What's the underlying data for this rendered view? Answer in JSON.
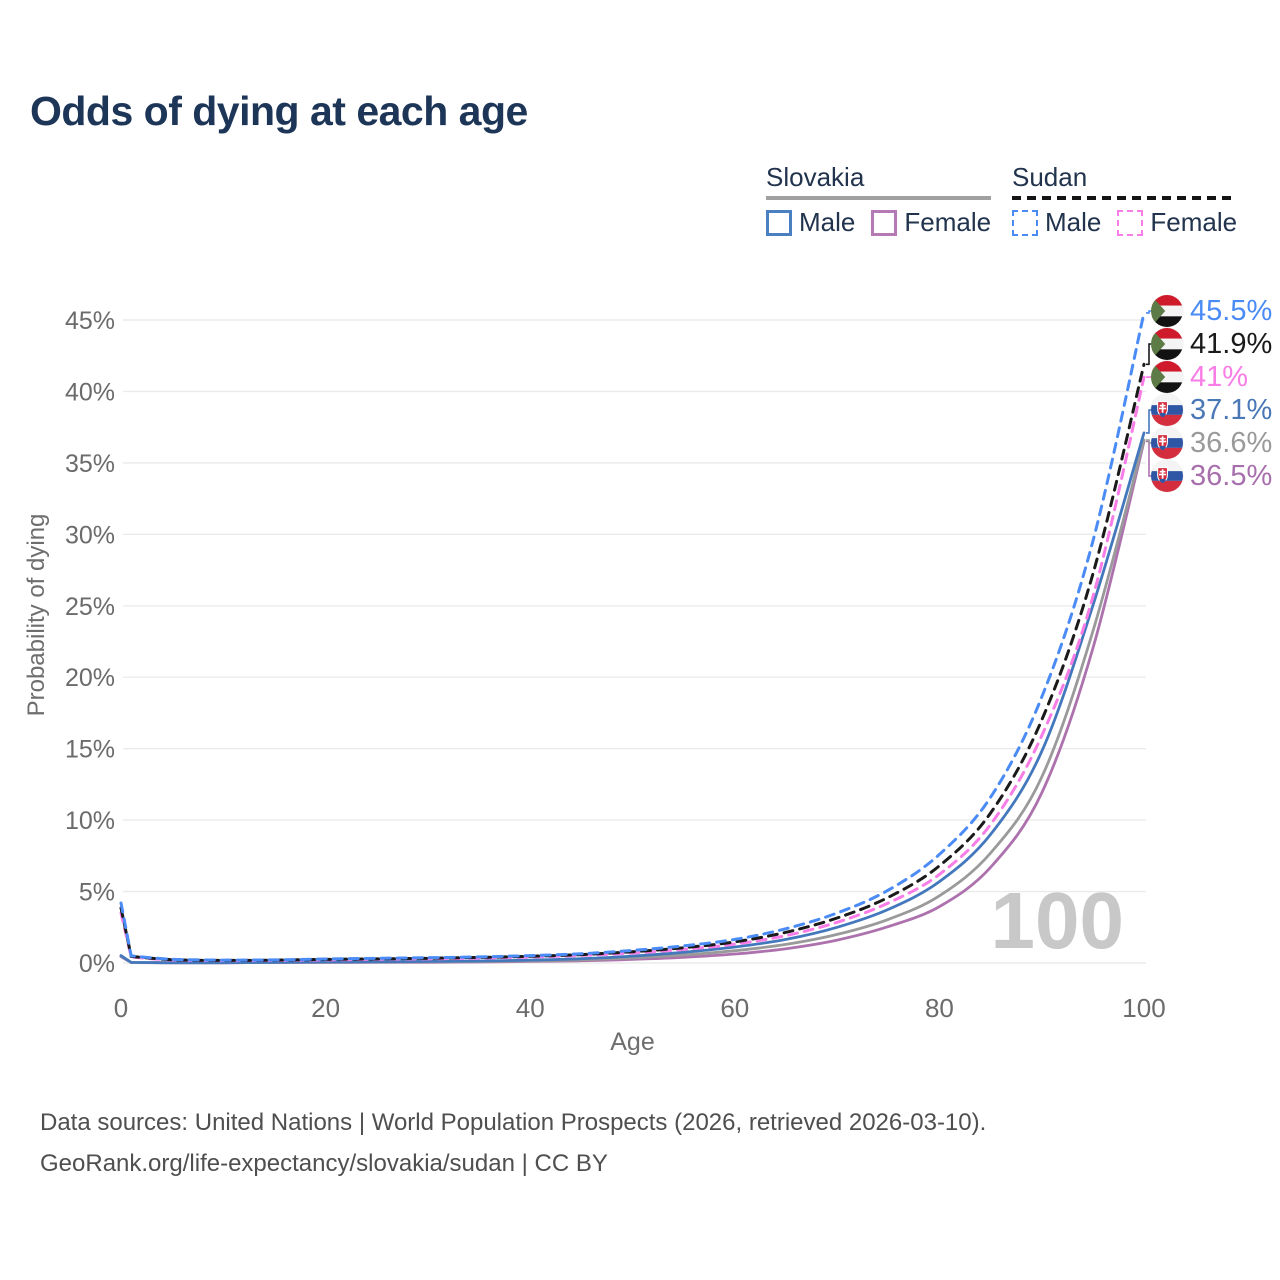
{
  "title": "Odds of dying at each age",
  "legend": {
    "groups": [
      {
        "country": "Slovakia",
        "line_style": "solid",
        "underline_color": "#a0a0a0",
        "items": [
          {
            "label": "Male",
            "color": "#4a7fc1"
          },
          {
            "label": "Female",
            "color": "#b579b5"
          }
        ]
      },
      {
        "country": "Sudan",
        "line_style": "dashed",
        "underline_color": "#141414",
        "items": [
          {
            "label": "Male",
            "color": "#4b8bf5"
          },
          {
            "label": "Female",
            "color": "#f87de6"
          }
        ]
      }
    ]
  },
  "end_labels": [
    {
      "flag": "sudan",
      "text": "45.5%",
      "color": "#4b8bf5"
    },
    {
      "flag": "sudan",
      "text": "41.9%",
      "color": "#1a1a1a"
    },
    {
      "flag": "sudan",
      "text": "41%",
      "color": "#f87de6"
    },
    {
      "flag": "slovakia",
      "text": "37.1%",
      "color": "#4a77b5"
    },
    {
      "flag": "slovakia",
      "text": "36.6%",
      "color": "#9a9a9a"
    },
    {
      "flag": "slovakia",
      "text": "36.5%",
      "color": "#a86fad"
    }
  ],
  "watermark": "100",
  "footer": {
    "line1": "Data sources: United Nations | World Population Prospects (2026, retrieved 2026-03-10).",
    "line2": "GeoRank.org/life-expectancy/slovakia/sudan | CC BY"
  },
  "chart_data": {
    "type": "line",
    "title": "Odds of dying at each age",
    "xlabel": "Age",
    "ylabel": "Probability of dying",
    "xlim": [
      0,
      100
    ],
    "ylim_percent": [
      0,
      46
    ],
    "xticks": [
      0,
      20,
      40,
      60,
      80,
      100
    ],
    "yticks_percent": [
      0,
      5,
      10,
      15,
      20,
      25,
      30,
      35,
      40,
      45
    ],
    "grid": true,
    "legend_position": "top-right",
    "units": "percent probability of dying at each age",
    "series": [
      {
        "name": "Slovakia Female",
        "country": "Slovakia",
        "sex": "female",
        "style": "solid",
        "color": "#ad72ad",
        "end_label": "36.5%",
        "end_label_slot": 5,
        "points": [
          [
            0,
            0.44
          ],
          [
            1,
            0.03
          ],
          [
            5,
            0.015
          ],
          [
            10,
            0.015
          ],
          [
            15,
            0.03
          ],
          [
            20,
            0.035
          ],
          [
            25,
            0.04
          ],
          [
            30,
            0.05
          ],
          [
            35,
            0.07
          ],
          [
            40,
            0.11
          ],
          [
            45,
            0.16
          ],
          [
            50,
            0.26
          ],
          [
            55,
            0.4
          ],
          [
            60,
            0.63
          ],
          [
            65,
            1.0
          ],
          [
            70,
            1.6
          ],
          [
            75,
            2.55
          ],
          [
            80,
            3.95
          ],
          [
            85,
            6.7
          ],
          [
            90,
            11.9
          ],
          [
            95,
            22.0
          ],
          [
            100,
            36.5
          ]
        ]
      },
      {
        "name": "Slovakia Both sexes",
        "country": "Slovakia",
        "sex": "all",
        "style": "solid",
        "color": "#9a9a9a",
        "end_label": "36.6%",
        "end_label_slot": 4,
        "points": [
          [
            0,
            0.48
          ],
          [
            1,
            0.035
          ],
          [
            5,
            0.018
          ],
          [
            10,
            0.018
          ],
          [
            15,
            0.04
          ],
          [
            20,
            0.055
          ],
          [
            25,
            0.065
          ],
          [
            30,
            0.08
          ],
          [
            35,
            0.1
          ],
          [
            40,
            0.15
          ],
          [
            45,
            0.22
          ],
          [
            50,
            0.36
          ],
          [
            55,
            0.56
          ],
          [
            60,
            0.86
          ],
          [
            65,
            1.3
          ],
          [
            70,
            2.0
          ],
          [
            75,
            3.05
          ],
          [
            80,
            4.7
          ],
          [
            85,
            7.7
          ],
          [
            90,
            13.0
          ],
          [
            95,
            23.2
          ],
          [
            100,
            36.6
          ]
        ]
      },
      {
        "name": "Slovakia Male",
        "country": "Slovakia",
        "sex": "male",
        "style": "solid",
        "color": "#4478bd",
        "end_label": "37.1%",
        "end_label_slot": 3,
        "points": [
          [
            0,
            0.52
          ],
          [
            1,
            0.04
          ],
          [
            5,
            0.02
          ],
          [
            10,
            0.02
          ],
          [
            15,
            0.05
          ],
          [
            20,
            0.08
          ],
          [
            25,
            0.09
          ],
          [
            30,
            0.11
          ],
          [
            35,
            0.14
          ],
          [
            40,
            0.2
          ],
          [
            45,
            0.3
          ],
          [
            50,
            0.48
          ],
          [
            55,
            0.75
          ],
          [
            60,
            1.12
          ],
          [
            65,
            1.65
          ],
          [
            70,
            2.5
          ],
          [
            75,
            3.75
          ],
          [
            80,
            5.7
          ],
          [
            85,
            9.0
          ],
          [
            90,
            14.8
          ],
          [
            95,
            25.0
          ],
          [
            100,
            37.1
          ]
        ]
      },
      {
        "name": "Sudan Female",
        "country": "Sudan",
        "sex": "female",
        "style": "dashed",
        "color": "#f87de6",
        "end_label": "41%",
        "end_label_slot": 2,
        "points": [
          [
            0,
            3.5
          ],
          [
            1,
            0.42
          ],
          [
            5,
            0.21
          ],
          [
            10,
            0.17
          ],
          [
            15,
            0.18
          ],
          [
            20,
            0.22
          ],
          [
            25,
            0.26
          ],
          [
            30,
            0.29
          ],
          [
            35,
            0.34
          ],
          [
            40,
            0.42
          ],
          [
            45,
            0.53
          ],
          [
            50,
            0.7
          ],
          [
            55,
            0.95
          ],
          [
            60,
            1.32
          ],
          [
            65,
            1.92
          ],
          [
            70,
            2.85
          ],
          [
            75,
            4.2
          ],
          [
            80,
            6.2
          ],
          [
            85,
            9.7
          ],
          [
            90,
            15.9
          ],
          [
            95,
            25.6
          ],
          [
            100,
            41.0
          ]
        ]
      },
      {
        "name": "Sudan Both sexes",
        "country": "Sudan",
        "sex": "all",
        "style": "dashed",
        "color": "#1a1a1a",
        "end_label": "41.9%",
        "end_label_slot": 1,
        "points": [
          [
            0,
            3.85
          ],
          [
            1,
            0.46
          ],
          [
            5,
            0.23
          ],
          [
            10,
            0.18
          ],
          [
            15,
            0.2
          ],
          [
            20,
            0.25
          ],
          [
            25,
            0.29
          ],
          [
            30,
            0.33
          ],
          [
            35,
            0.39
          ],
          [
            40,
            0.47
          ],
          [
            45,
            0.59
          ],
          [
            50,
            0.79
          ],
          [
            55,
            1.07
          ],
          [
            60,
            1.48
          ],
          [
            65,
            2.15
          ],
          [
            70,
            3.15
          ],
          [
            75,
            4.6
          ],
          [
            80,
            6.8
          ],
          [
            85,
            10.5
          ],
          [
            90,
            17.0
          ],
          [
            95,
            27.2
          ],
          [
            100,
            41.9
          ]
        ]
      },
      {
        "name": "Sudan Male",
        "country": "Sudan",
        "sex": "male",
        "style": "dashed",
        "color": "#4b8bf5",
        "end_label": "45.5%",
        "end_label_slot": 0,
        "points": [
          [
            0,
            4.2
          ],
          [
            1,
            0.5
          ],
          [
            5,
            0.26
          ],
          [
            10,
            0.2
          ],
          [
            15,
            0.22
          ],
          [
            20,
            0.28
          ],
          [
            25,
            0.33
          ],
          [
            30,
            0.37
          ],
          [
            35,
            0.43
          ],
          [
            40,
            0.52
          ],
          [
            45,
            0.65
          ],
          [
            50,
            0.88
          ],
          [
            55,
            1.2
          ],
          [
            60,
            1.65
          ],
          [
            65,
            2.4
          ],
          [
            70,
            3.5
          ],
          [
            75,
            5.1
          ],
          [
            80,
            7.6
          ],
          [
            85,
            11.6
          ],
          [
            90,
            18.6
          ],
          [
            95,
            29.5
          ],
          [
            100,
            45.5
          ]
        ]
      }
    ]
  }
}
